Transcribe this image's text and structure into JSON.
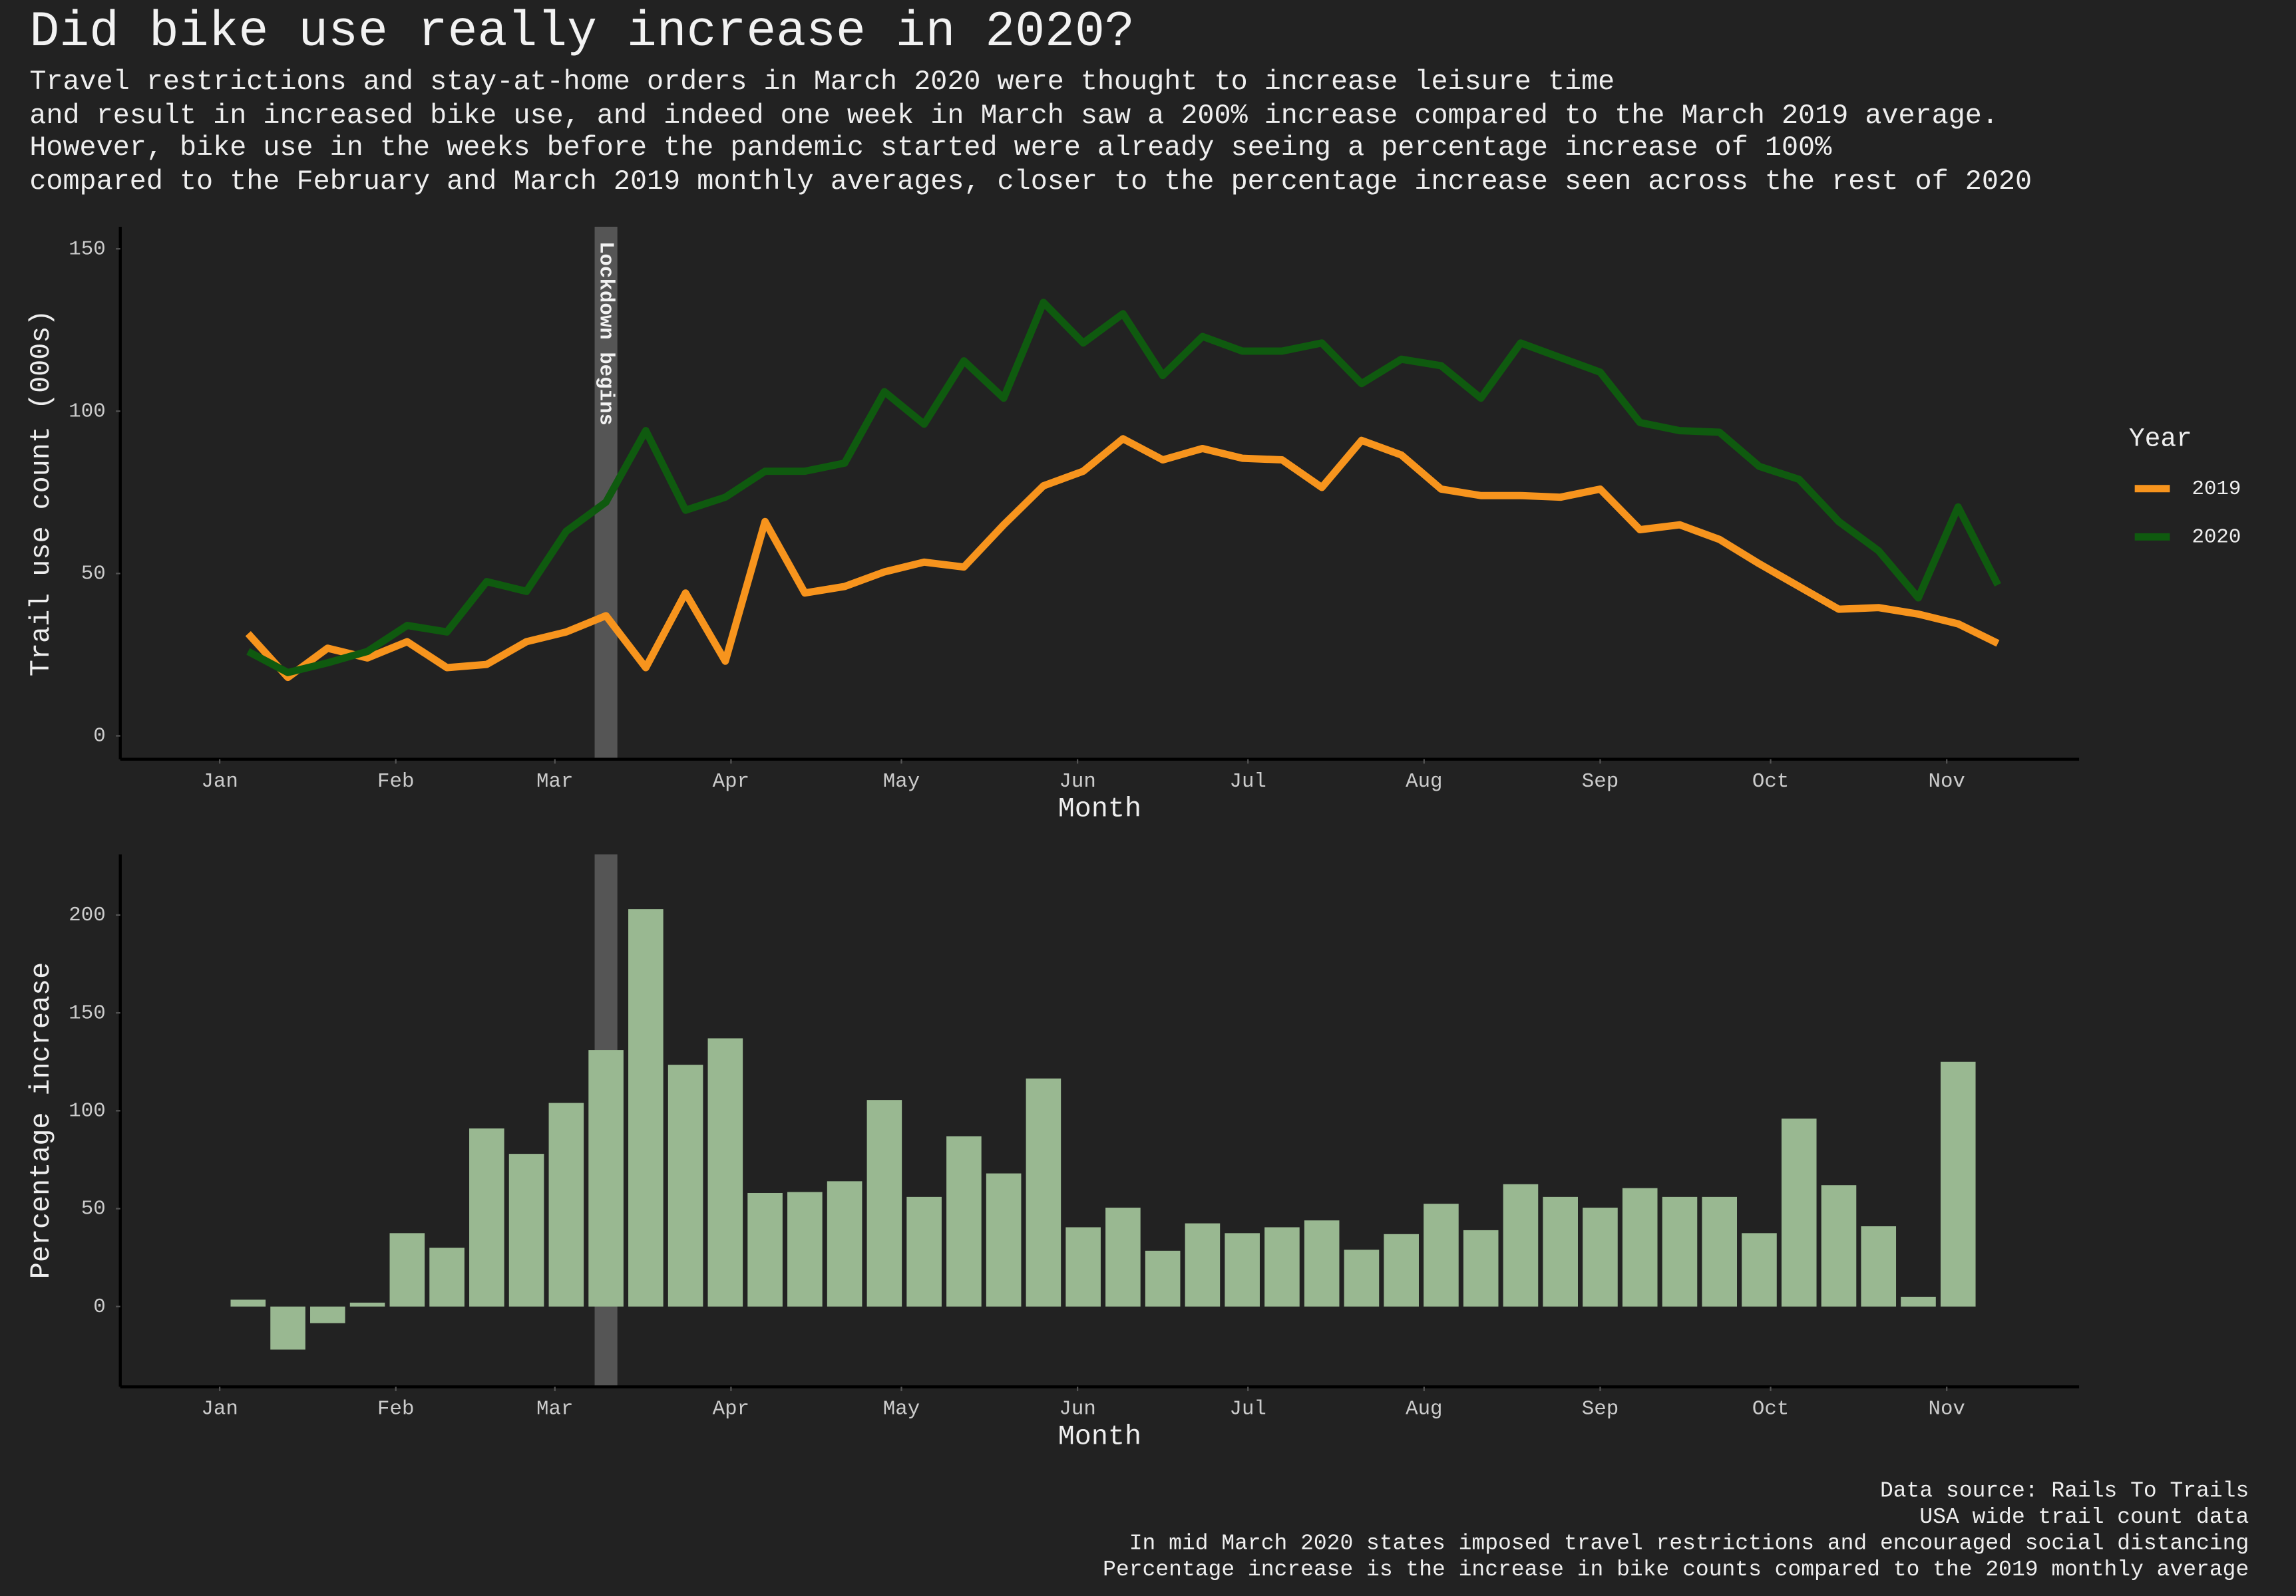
{
  "title": "Did bike use really increase in 2020?",
  "subtitle": [
    "Travel restrictions and stay-at-home orders in March 2020 were thought to increase leisure time",
    "and result in increased bike use, and indeed one week in March saw a 200% increase compared to the March 2019 average.",
    "However, bike use in the weeks before the pandemic started were already seeing a percentage increase of 100%",
    "compared to the February and March 2019 monthly averages, closer to the percentage increase seen across the rest of 2020"
  ],
  "caption": [
    "Data source: Rails To Trails",
    "USA wide trail count data",
    "In mid March 2020 states imposed travel restrictions and encouraged social distancing",
    "Percentage increase is the increase in bike counts compared to the 2019 monthly average"
  ],
  "chart_data": [
    {
      "type": "line",
      "xlabel": "Month",
      "ylabel": "Trail use count (000s)",
      "x": [
        6,
        13,
        20,
        27,
        34,
        41,
        48,
        55,
        62,
        69,
        76,
        83,
        90,
        97,
        104,
        111,
        118,
        125,
        132,
        139,
        146,
        153,
        160,
        167,
        174,
        181,
        188,
        195,
        202,
        209,
        216,
        223,
        230,
        237,
        244,
        251,
        258,
        265,
        272,
        279,
        286,
        293,
        300,
        307,
        314
      ],
      "series": [
        {
          "name": "2019",
          "color": "#f7941d",
          "values": [
            31.5,
            18,
            27,
            24,
            29,
            21,
            22,
            29,
            32,
            37,
            21,
            44,
            23,
            66,
            44,
            46,
            50.5,
            53.5,
            52,
            65,
            77,
            81.5,
            91.5,
            85,
            88.5,
            85.5,
            85,
            76.5,
            91,
            86.5,
            76,
            74,
            74,
            73.5,
            76,
            63.5,
            65,
            60.5,
            53,
            46,
            39,
            39.5,
            37.5,
            34.5,
            28.5
          ]
        },
        {
          "name": "2020",
          "color": "#0f5a0f",
          "values": [
            26,
            19.5,
            22.5,
            26,
            34,
            32,
            47.5,
            44.5,
            63,
            72,
            94,
            69.5,
            73.5,
            81.5,
            81.5,
            84,
            106,
            96,
            115.5,
            104,
            133.5,
            121,
            130,
            111,
            123,
            118.5,
            118.5,
            121,
            108.5,
            116,
            114,
            104,
            121,
            116.5,
            112,
            96.5,
            94,
            93.5,
            83,
            79,
            66,
            57,
            42.5,
            70.5,
            46.5
          ]
        }
      ],
      "xlim": [
        -16.5,
        328.3
      ],
      "xticks": [
        {
          "value": 1,
          "label": "Jan"
        },
        {
          "value": 32,
          "label": "Feb"
        },
        {
          "value": 60,
          "label": "Mar"
        },
        {
          "value": 91,
          "label": "Apr"
        },
        {
          "value": 121,
          "label": "May"
        },
        {
          "value": 152,
          "label": "Jun"
        },
        {
          "value": 182,
          "label": "Jul"
        },
        {
          "value": 213,
          "label": "Aug"
        },
        {
          "value": 244,
          "label": "Sep"
        },
        {
          "value": 274,
          "label": "Oct"
        },
        {
          "value": 305,
          "label": "Nov"
        }
      ],
      "ylim": [
        -7.2,
        156.8
      ],
      "yticks": [
        0,
        50,
        100,
        150
      ],
      "shade": [
        67,
        71
      ],
      "annotation": "Lockdown begins",
      "legend": "right",
      "legend_title": "Year"
    },
    {
      "type": "bar",
      "xlabel": "Month",
      "ylabel": "Percentage increase",
      "color": "#99b891",
      "x": [
        6,
        13,
        20,
        27,
        34,
        41,
        48,
        55,
        62,
        69,
        76,
        83,
        90,
        97,
        104,
        111,
        118,
        125,
        132,
        139,
        146,
        153,
        160,
        167,
        174,
        181,
        188,
        195,
        202,
        209,
        216,
        223,
        230,
        237,
        244,
        251,
        258,
        265,
        272,
        279,
        286,
        293,
        300,
        307
      ],
      "values": [
        3.5,
        -22,
        -8.5,
        2,
        37.5,
        30,
        91,
        78,
        104,
        131,
        203,
        123.5,
        137,
        58,
        58.5,
        64,
        105.5,
        56,
        87,
        68,
        116.5,
        40.5,
        50.5,
        28.5,
        42.5,
        37.5,
        40.5,
        44,
        29,
        37,
        52.5,
        39,
        62.5,
        56,
        50.5,
        60.5,
        56,
        56,
        37.5,
        96,
        62,
        41,
        5,
        125
      ],
      "xlim": [
        -16.5,
        328.3
      ],
      "xticks": [
        {
          "value": 1,
          "label": "Jan"
        },
        {
          "value": 32,
          "label": "Feb"
        },
        {
          "value": 60,
          "label": "Mar"
        },
        {
          "value": 91,
          "label": "Apr"
        },
        {
          "value": 121,
          "label": "May"
        },
        {
          "value": 152,
          "label": "Jun"
        },
        {
          "value": 182,
          "label": "Jul"
        },
        {
          "value": 213,
          "label": "Aug"
        },
        {
          "value": 244,
          "label": "Sep"
        },
        {
          "value": 274,
          "label": "Oct"
        },
        {
          "value": 305,
          "label": "Nov"
        }
      ],
      "ylim": [
        -41,
        231
      ],
      "yticks": [
        0,
        50,
        100,
        150,
        200
      ],
      "shade": [
        67,
        71
      ]
    }
  ]
}
